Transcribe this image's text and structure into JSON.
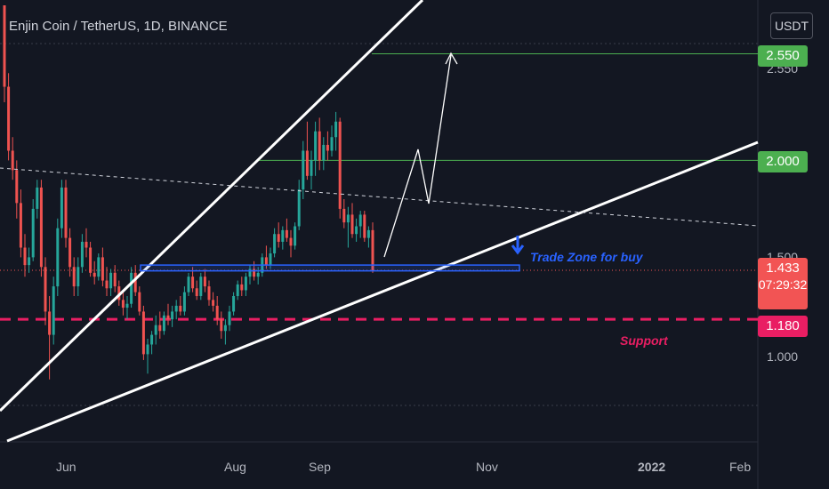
{
  "header": {
    "title": "Enjin Coin / TetherUS, 1D, BINANCE",
    "currency_button": "USDT"
  },
  "colors": {
    "background": "#131722",
    "up": "#26a69a",
    "down": "#ef5350",
    "target": "#4caf50",
    "support": "#e91e63",
    "trade_zone": "#2962ff",
    "text": "#d1d4dc"
  },
  "price_badges": {
    "target_high": "2.550",
    "target_mid": "2.000",
    "current_price": "1.433",
    "countdown": "07:29:32",
    "support": "1.180"
  },
  "annotations": {
    "trade_zone": "Trade Zone for buy",
    "support": "Support"
  },
  "chart_data": {
    "type": "candlestick",
    "title": "Enjin Coin / TetherUS, 1D, BINANCE",
    "x_axis": {
      "tick_labels": [
        "Jun",
        "Aug",
        "Sep",
        "Nov",
        "2022",
        "Feb"
      ]
    },
    "y_axis": {
      "tick_labels": [
        "1.000",
        "1.500",
        "2.000",
        "2.550"
      ],
      "range": [
        0.8,
        2.6
      ]
    },
    "horizontal_levels": [
      {
        "label": "2.550",
        "value": 2.55
      },
      {
        "label": "2.000",
        "value": 2.0
      },
      {
        "label": "Support",
        "value": 1.18
      }
    ],
    "trade_zone": {
      "low": 1.43,
      "high": 1.46
    },
    "current_price": 1.433,
    "series": [
      {
        "name": "",
        "candles": [
          [
            2.8,
            2.8,
            2.3,
            2.38
          ],
          [
            2.38,
            2.45,
            2.0,
            2.05
          ],
          [
            2.05,
            2.12,
            1.9,
            1.95
          ],
          [
            1.95,
            2.0,
            1.7,
            1.78
          ],
          [
            1.78,
            1.85,
            1.5,
            1.55
          ],
          [
            1.55,
            1.62,
            1.4,
            1.46
          ],
          [
            1.46,
            1.55,
            1.42,
            1.5
          ],
          [
            1.5,
            1.8,
            1.48,
            1.75
          ],
          [
            1.75,
            1.9,
            1.7,
            1.86
          ],
          [
            1.86,
            1.9,
            1.4,
            1.45
          ],
          [
            1.45,
            1.5,
            1.15,
            1.22
          ],
          [
            1.22,
            1.3,
            0.87,
            1.1
          ],
          [
            1.1,
            1.4,
            1.05,
            1.35
          ],
          [
            1.35,
            1.7,
            1.3,
            1.65
          ],
          [
            1.65,
            1.9,
            1.6,
            1.86
          ],
          [
            1.86,
            1.9,
            1.55,
            1.6
          ],
          [
            1.6,
            1.65,
            1.4,
            1.45
          ],
          [
            1.45,
            1.5,
            1.3,
            1.35
          ],
          [
            1.35,
            1.5,
            1.3,
            1.45
          ],
          [
            1.45,
            1.62,
            1.42,
            1.58
          ],
          [
            1.58,
            1.65,
            1.5,
            1.55
          ],
          [
            1.55,
            1.58,
            1.4,
            1.42
          ],
          [
            1.42,
            1.48,
            1.36,
            1.4
          ],
          [
            1.4,
            1.52,
            1.38,
            1.5
          ],
          [
            1.5,
            1.55,
            1.35,
            1.38
          ],
          [
            1.38,
            1.45,
            1.3,
            1.34
          ],
          [
            1.34,
            1.44,
            1.3,
            1.42
          ],
          [
            1.42,
            1.46,
            1.32,
            1.35
          ],
          [
            1.35,
            1.38,
            1.25,
            1.28
          ],
          [
            1.28,
            1.32,
            1.2,
            1.24
          ],
          [
            1.24,
            1.3,
            1.18,
            1.26
          ],
          [
            1.26,
            1.45,
            1.24,
            1.42
          ],
          [
            1.42,
            1.46,
            1.3,
            1.32
          ],
          [
            1.32,
            1.35,
            1.2,
            1.22
          ],
          [
            1.22,
            1.25,
            0.97,
            1.0
          ],
          [
            1.0,
            1.08,
            0.9,
            1.05
          ],
          [
            1.05,
            1.12,
            1.0,
            1.1
          ],
          [
            1.1,
            1.2,
            1.05,
            1.15
          ],
          [
            1.15,
            1.22,
            1.08,
            1.12
          ],
          [
            1.12,
            1.22,
            1.1,
            1.2
          ],
          [
            1.2,
            1.26,
            1.15,
            1.18
          ],
          [
            1.18,
            1.25,
            1.14,
            1.22
          ],
          [
            1.22,
            1.28,
            1.18,
            1.25
          ],
          [
            1.25,
            1.3,
            1.2,
            1.22
          ],
          [
            1.22,
            1.35,
            1.2,
            1.32
          ],
          [
            1.32,
            1.42,
            1.3,
            1.4
          ],
          [
            1.4,
            1.45,
            1.32,
            1.34
          ],
          [
            1.34,
            1.38,
            1.28,
            1.3
          ],
          [
            1.3,
            1.42,
            1.28,
            1.4
          ],
          [
            1.4,
            1.44,
            1.32,
            1.35
          ],
          [
            1.35,
            1.38,
            1.25,
            1.28
          ],
          [
            1.28,
            1.32,
            1.22,
            1.25
          ],
          [
            1.25,
            1.3,
            1.15,
            1.18
          ],
          [
            1.18,
            1.22,
            1.08,
            1.12
          ],
          [
            1.12,
            1.18,
            1.05,
            1.15
          ],
          [
            1.15,
            1.25,
            1.12,
            1.22
          ],
          [
            1.22,
            1.32,
            1.2,
            1.3
          ],
          [
            1.3,
            1.38,
            1.28,
            1.36
          ],
          [
            1.36,
            1.4,
            1.3,
            1.33
          ],
          [
            1.33,
            1.42,
            1.3,
            1.4
          ],
          [
            1.4,
            1.46,
            1.36,
            1.44
          ],
          [
            1.44,
            1.48,
            1.38,
            1.4
          ],
          [
            1.4,
            1.45,
            1.36,
            1.42
          ],
          [
            1.42,
            1.52,
            1.4,
            1.5
          ],
          [
            1.5,
            1.56,
            1.44,
            1.46
          ],
          [
            1.46,
            1.55,
            1.44,
            1.52
          ],
          [
            1.52,
            1.65,
            1.5,
            1.62
          ],
          [
            1.62,
            1.68,
            1.55,
            1.58
          ],
          [
            1.58,
            1.66,
            1.54,
            1.64
          ],
          [
            1.64,
            1.7,
            1.58,
            1.6
          ],
          [
            1.6,
            1.64,
            1.5,
            1.56
          ],
          [
            1.56,
            1.68,
            1.54,
            1.66
          ],
          [
            1.66,
            1.9,
            1.64,
            1.85
          ],
          [
            1.85,
            2.1,
            1.8,
            2.05
          ],
          [
            2.05,
            2.2,
            1.9,
            1.92
          ],
          [
            1.92,
            2.05,
            1.85,
            2.0
          ],
          [
            2.0,
            2.2,
            1.92,
            2.15
          ],
          [
            2.15,
            2.22,
            1.95,
            2.0
          ],
          [
            2.0,
            2.12,
            1.95,
            2.08
          ],
          [
            2.08,
            2.15,
            2.0,
            2.05
          ],
          [
            2.05,
            2.18,
            2.02,
            2.12
          ],
          [
            2.12,
            2.25,
            2.05,
            2.2
          ],
          [
            2.2,
            2.22,
            1.7,
            1.75
          ],
          [
            1.75,
            1.8,
            1.65,
            1.68
          ],
          [
            1.68,
            1.76,
            1.55,
            1.72
          ],
          [
            1.72,
            1.78,
            1.6,
            1.62
          ],
          [
            1.62,
            1.7,
            1.58,
            1.66
          ],
          [
            1.66,
            1.74,
            1.6,
            1.72
          ],
          [
            1.72,
            1.74,
            1.58,
            1.6
          ],
          [
            1.6,
            1.66,
            1.55,
            1.64
          ],
          [
            1.64,
            1.68,
            1.42,
            1.433
          ]
        ]
      }
    ]
  }
}
